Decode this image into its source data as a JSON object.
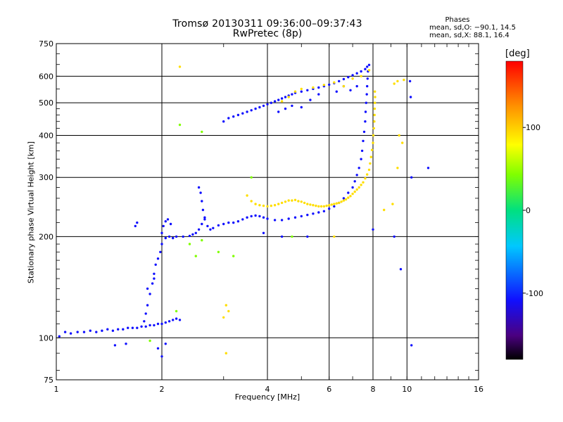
{
  "header": {
    "title_line1": "Tromsø 20130311 09:36:00–09:37:43",
    "title_line2": "RwPretec (8p)",
    "phases_title": "Phases",
    "phases_o": "mean, sd,O: −90.1, 14.5",
    "phases_x": "mean, sd,X:  88.1, 16.4"
  },
  "colors": {
    "o_mode": "#1a3fe0",
    "x_mode": "#ffd21a",
    "gridline": "#000000"
  },
  "chart_data": {
    "type": "scatter",
    "xlabel": "Frequency [MHz]",
    "ylabel": "Stationary phase Virtual Height [km]",
    "xscale": "log",
    "yscale": "log",
    "xlim": [
      1,
      16
    ],
    "ylim": [
      75,
      750
    ],
    "xticks": [
      1,
      2,
      4,
      6,
      8,
      10,
      16
    ],
    "yticks": [
      75,
      100,
      200,
      300,
      400,
      500,
      600,
      750
    ],
    "grid": true,
    "colorbar": {
      "label": "[deg]",
      "range": [
        -180,
        180
      ],
      "ticks": [
        100,
        0,
        -100
      ]
    },
    "series": [
      {
        "mode": "O",
        "phase": -100,
        "points": [
          [
            1.02,
            101
          ],
          [
            1.06,
            104
          ],
          [
            1.1,
            103
          ],
          [
            1.15,
            104
          ],
          [
            1.2,
            104
          ],
          [
            1.25,
            105
          ],
          [
            1.3,
            104
          ],
          [
            1.35,
            105
          ],
          [
            1.4,
            106
          ],
          [
            1.45,
            105
          ],
          [
            1.5,
            106
          ],
          [
            1.55,
            106
          ],
          [
            1.6,
            107
          ],
          [
            1.65,
            107
          ],
          [
            1.7,
            107
          ],
          [
            1.75,
            108
          ],
          [
            1.8,
            108
          ],
          [
            1.85,
            109
          ],
          [
            1.9,
            109
          ],
          [
            1.95,
            110
          ],
          [
            2.0,
            110
          ],
          [
            2.05,
            111
          ],
          [
            2.1,
            112
          ],
          [
            2.15,
            113
          ],
          [
            2.2,
            114
          ],
          [
            2.25,
            113
          ],
          [
            1.78,
            112
          ],
          [
            1.8,
            118
          ],
          [
            1.82,
            125
          ],
          [
            1.85,
            135
          ],
          [
            1.88,
            145
          ],
          [
            1.9,
            155
          ],
          [
            1.92,
            165
          ],
          [
            1.95,
            172
          ],
          [
            1.98,
            180
          ],
          [
            2.0,
            190
          ],
          [
            2.0,
            205
          ],
          [
            2.02,
            215
          ],
          [
            2.05,
            222
          ],
          [
            2.08,
            225
          ],
          [
            2.12,
            218
          ],
          [
            2.05,
            198
          ],
          [
            2.1,
            200
          ],
          [
            2.15,
            198
          ],
          [
            2.2,
            200
          ],
          [
            2.3,
            200
          ],
          [
            2.4,
            201
          ],
          [
            2.45,
            203
          ],
          [
            2.5,
            205
          ],
          [
            2.55,
            210
          ],
          [
            2.6,
            218
          ],
          [
            2.65,
            228
          ],
          [
            2.62,
            240
          ],
          [
            2.6,
            255
          ],
          [
            2.58,
            270
          ],
          [
            2.55,
            280
          ],
          [
            2.65,
            225
          ],
          [
            2.7,
            215
          ],
          [
            2.75,
            210
          ],
          [
            2.8,
            212
          ],
          [
            2.9,
            216
          ],
          [
            3.0,
            218
          ],
          [
            3.1,
            220
          ],
          [
            3.2,
            220
          ],
          [
            3.3,
            222
          ],
          [
            3.4,
            225
          ],
          [
            3.5,
            228
          ],
          [
            3.6,
            230
          ],
          [
            3.7,
            231
          ],
          [
            3.8,
            230
          ],
          [
            3.9,
            228
          ],
          [
            4.0,
            226
          ],
          [
            4.2,
            224
          ],
          [
            4.4,
            224
          ],
          [
            4.6,
            226
          ],
          [
            4.8,
            228
          ],
          [
            5.0,
            230
          ],
          [
            5.2,
            232
          ],
          [
            5.4,
            234
          ],
          [
            5.6,
            236
          ],
          [
            5.8,
            238
          ],
          [
            6.0,
            242
          ],
          [
            6.2,
            246
          ],
          [
            6.4,
            252
          ],
          [
            6.6,
            260
          ],
          [
            6.8,
            270
          ],
          [
            7.0,
            280
          ],
          [
            7.1,
            292
          ],
          [
            7.2,
            305
          ],
          [
            7.3,
            320
          ],
          [
            7.4,
            340
          ],
          [
            7.45,
            360
          ],
          [
            7.5,
            385
          ],
          [
            7.55,
            410
          ],
          [
            7.6,
            440
          ],
          [
            7.62,
            470
          ],
          [
            7.65,
            500
          ],
          [
            7.68,
            530
          ],
          [
            7.7,
            560
          ],
          [
            7.72,
            590
          ],
          [
            7.74,
            620
          ],
          [
            3.0,
            440
          ],
          [
            3.1,
            450
          ],
          [
            3.2,
            455
          ],
          [
            3.3,
            460
          ],
          [
            3.4,
            465
          ],
          [
            3.5,
            470
          ],
          [
            3.6,
            475
          ],
          [
            3.7,
            480
          ],
          [
            3.8,
            485
          ],
          [
            3.9,
            490
          ],
          [
            4.0,
            495
          ],
          [
            4.1,
            500
          ],
          [
            4.2,
            505
          ],
          [
            4.3,
            510
          ],
          [
            4.4,
            515
          ],
          [
            4.5,
            520
          ],
          [
            4.6,
            525
          ],
          [
            4.7,
            530
          ],
          [
            4.8,
            535
          ],
          [
            5.0,
            540
          ],
          [
            5.2,
            545
          ],
          [
            5.4,
            550
          ],
          [
            5.6,
            555
          ],
          [
            5.8,
            560
          ],
          [
            6.0,
            566
          ],
          [
            6.2,
            572
          ],
          [
            6.4,
            580
          ],
          [
            6.6,
            588
          ],
          [
            6.8,
            596
          ],
          [
            7.0,
            604
          ],
          [
            7.2,
            612
          ],
          [
            7.4,
            620
          ],
          [
            7.6,
            630
          ],
          [
            7.7,
            640
          ],
          [
            7.8,
            648
          ],
          [
            4.3,
            470
          ],
          [
            4.5,
            480
          ],
          [
            4.7,
            490
          ],
          [
            5.0,
            485
          ],
          [
            5.3,
            510
          ],
          [
            5.6,
            530
          ],
          [
            6.3,
            540
          ],
          [
            6.6,
            560
          ],
          [
            6.9,
            545
          ],
          [
            7.2,
            560
          ],
          [
            1.47,
            95
          ],
          [
            1.95,
            93
          ],
          [
            2.0,
            88
          ],
          [
            2.05,
            96
          ],
          [
            3.9,
            205
          ],
          [
            4.4,
            200
          ],
          [
            5.2,
            200
          ],
          [
            8.0,
            210
          ],
          [
            9.2,
            200
          ],
          [
            9.6,
            160
          ],
          [
            10.3,
            95
          ],
          [
            10.3,
            300
          ],
          [
            11.5,
            320
          ],
          [
            10.2,
            580
          ],
          [
            10.25,
            520
          ],
          [
            1.68,
            215
          ],
          [
            1.7,
            220
          ],
          [
            1.9,
            150
          ],
          [
            1.82,
            140
          ],
          [
            1.58,
            96
          ]
        ]
      },
      {
        "mode": "X",
        "phase": 95,
        "points": [
          [
            3.5,
            265
          ],
          [
            3.6,
            255
          ],
          [
            3.7,
            250
          ],
          [
            3.8,
            248
          ],
          [
            3.9,
            247
          ],
          [
            4.0,
            246
          ],
          [
            4.1,
            247
          ],
          [
            4.2,
            248
          ],
          [
            4.3,
            250
          ],
          [
            4.4,
            252
          ],
          [
            4.5,
            254
          ],
          [
            4.6,
            256
          ],
          [
            4.7,
            256
          ],
          [
            4.8,
            257
          ],
          [
            4.9,
            255
          ],
          [
            5.0,
            254
          ],
          [
            5.1,
            252
          ],
          [
            5.2,
            250
          ],
          [
            5.3,
            249
          ],
          [
            5.4,
            248
          ],
          [
            5.5,
            247
          ],
          [
            5.6,
            246
          ],
          [
            5.7,
            246
          ],
          [
            5.8,
            246
          ],
          [
            5.9,
            247
          ],
          [
            6.0,
            248
          ],
          [
            6.1,
            249
          ],
          [
            6.2,
            250
          ],
          [
            6.3,
            251
          ],
          [
            6.4,
            252
          ],
          [
            6.5,
            254
          ],
          [
            6.6,
            256
          ],
          [
            6.7,
            258
          ],
          [
            6.8,
            261
          ],
          [
            6.9,
            264
          ],
          [
            7.0,
            268
          ],
          [
            7.1,
            272
          ],
          [
            7.2,
            276
          ],
          [
            7.3,
            280
          ],
          [
            7.4,
            285
          ],
          [
            7.5,
            290
          ],
          [
            7.6,
            298
          ],
          [
            7.7,
            306
          ],
          [
            7.8,
            316
          ],
          [
            7.85,
            330
          ],
          [
            7.9,
            345
          ],
          [
            7.95,
            362
          ],
          [
            8.0,
            380
          ],
          [
            8.02,
            400
          ],
          [
            8.05,
            420
          ],
          [
            8.07,
            440
          ],
          [
            8.08,
            460
          ],
          [
            8.09,
            480
          ],
          [
            8.1,
            500
          ],
          [
            8.11,
            520
          ],
          [
            8.1,
            540
          ],
          [
            4.4,
            505
          ],
          [
            4.6,
            520
          ],
          [
            4.8,
            540
          ],
          [
            5.0,
            550
          ],
          [
            5.4,
            555
          ],
          [
            5.8,
            565
          ],
          [
            6.2,
            575
          ],
          [
            6.6,
            560
          ],
          [
            7.0,
            590
          ],
          [
            7.4,
            600
          ],
          [
            7.8,
            625
          ],
          [
            3.05,
            125
          ],
          [
            3.1,
            120
          ],
          [
            3.0,
            115
          ],
          [
            3.05,
            90
          ],
          [
            2.25,
            640
          ],
          [
            6.2,
            200
          ],
          [
            9.2,
            570
          ],
          [
            9.4,
            580
          ],
          [
            9.8,
            585
          ],
          [
            9.5,
            400
          ],
          [
            9.7,
            380
          ],
          [
            9.4,
            320
          ],
          [
            9.1,
            250
          ],
          [
            8.6,
            240
          ]
        ]
      },
      {
        "mode": "other",
        "phase": 40,
        "points": [
          [
            2.4,
            190
          ],
          [
            2.6,
            195
          ],
          [
            2.5,
            175
          ],
          [
            2.9,
            180
          ],
          [
            3.6,
            300
          ],
          [
            2.6,
            410
          ],
          [
            2.2,
            120
          ],
          [
            2.25,
            430
          ],
          [
            1.85,
            98
          ],
          [
            4.7,
            200
          ],
          [
            3.2,
            175
          ]
        ]
      }
    ]
  }
}
